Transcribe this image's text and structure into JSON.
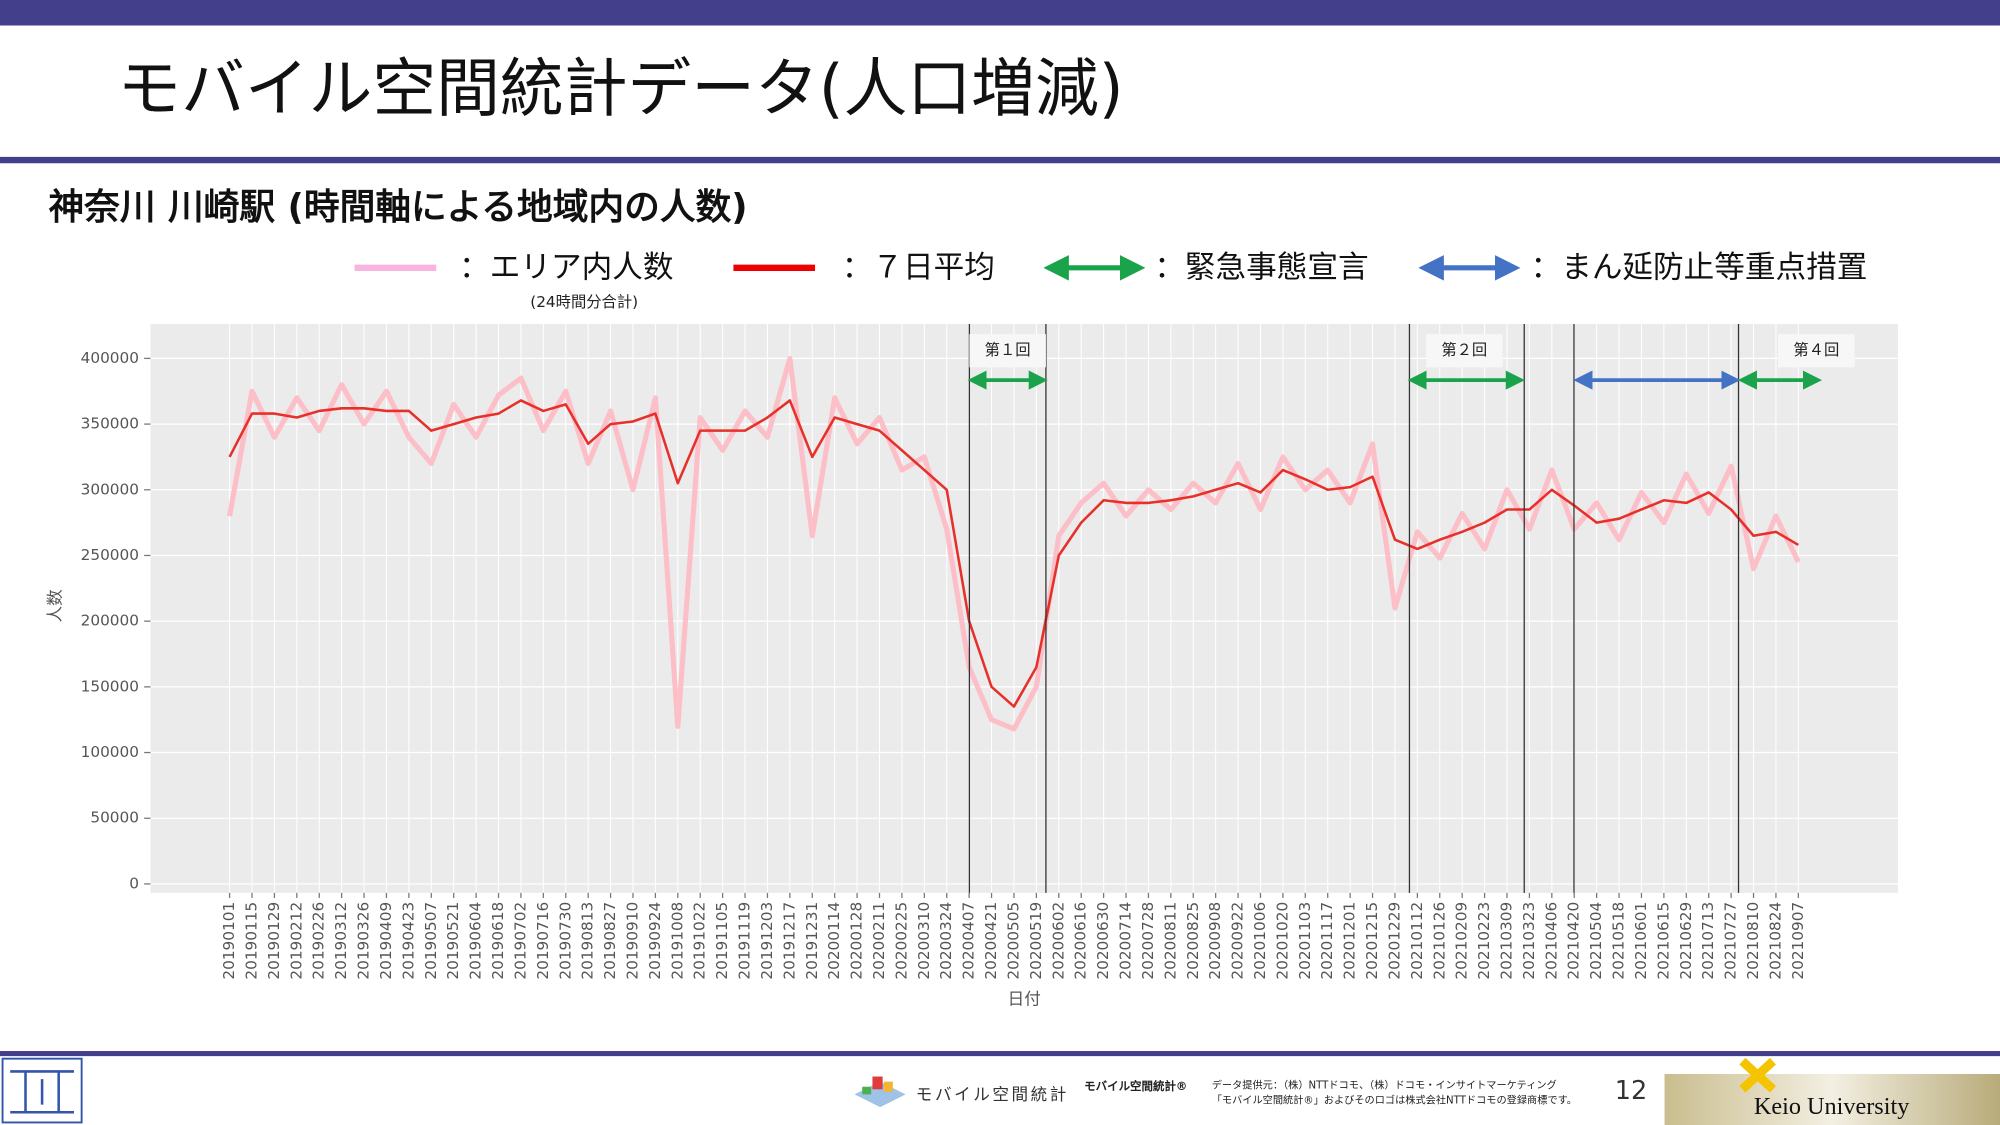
{
  "slide": {
    "title": "モバイル空間統計データ(人口増減)",
    "page_number": "12",
    "footer": {
      "logo_text": "モバイル空間統計",
      "brand": "モバイル空間統計®",
      "provider": "データ提供元：（株）NTTドコモ、（株）ドコモ・インサイトマーケティング",
      "trademark": "「モバイル空間統計®」およびそのロゴは株式会社NTTドコモの登録商標です。",
      "university": "Keio University"
    }
  },
  "chart_data": {
    "type": "line",
    "title": "神奈川 川崎駅 (時間軸による地域内の人数)",
    "y_label": "人数",
    "x_label": "日付",
    "legend_note": "(24時間分合計)",
    "legend_extra": [
      {
        "name": "：緊急事態宣言",
        "color": "#1aa34a"
      },
      {
        "name": "：まん延防止等重点措置",
        "color": "#4472c4"
      }
    ],
    "annotations": [
      "第１回",
      "第２回",
      "第４回"
    ],
    "grid": true,
    "categories": [
      "20190101",
      "20190115",
      "20190129",
      "20190212",
      "20190226",
      "20190312",
      "20190326",
      "20190409",
      "20190423",
      "20190507",
      "20190521",
      "20190604",
      "20190618",
      "20190702",
      "20190716",
      "20190730",
      "20190813",
      "20190827",
      "20190910",
      "20190924",
      "20191008",
      "20191022",
      "20191105",
      "20191119",
      "20191203",
      "20191217",
      "20191231",
      "20200114",
      "20200128",
      "20200211",
      "20200225",
      "20200310",
      "20200324",
      "20200407",
      "20200421",
      "20200505",
      "20200519",
      "20200602",
      "20200616",
      "20200630",
      "20200714",
      "20200728",
      "20200811",
      "20200825",
      "20200908",
      "20200922",
      "20201006",
      "20201020",
      "20201103",
      "20201117",
      "20201201",
      "20201215",
      "20201229",
      "20210112",
      "20210126",
      "20210209",
      "20210223",
      "20210309",
      "20210323",
      "20210406",
      "20210420",
      "20210504",
      "20210518",
      "20210601",
      "20210615",
      "20210629",
      "20210713",
      "20210727",
      "20210810",
      "20210824",
      "20210907"
    ],
    "series": [
      {
        "name": "：エリア内人数",
        "color": "#ffb6c1",
        "values": [
          280000,
          375000,
          340000,
          370000,
          345000,
          380000,
          350000,
          375000,
          340000,
          320000,
          365000,
          340000,
          372000,
          385000,
          345000,
          375000,
          320000,
          360000,
          300000,
          370000,
          120000,
          355000,
          330000,
          360000,
          340000,
          400000,
          265000,
          370000,
          335000,
          355000,
          315000,
          325000,
          270000,
          165000,
          125000,
          118000,
          150000,
          265000,
          290000,
          305000,
          280000,
          300000,
          285000,
          305000,
          290000,
          320000,
          285000,
          325000,
          300000,
          315000,
          290000,
          335000,
          210000,
          268000,
          248000,
          282000,
          255000,
          300000,
          270000,
          315000,
          270000,
          290000,
          262000,
          298000,
          275000,
          312000,
          282000,
          318000,
          240000,
          280000,
          245000
        ]
      },
      {
        "name": "：７日平均",
        "color": "#e8302a",
        "values": [
          325000,
          358000,
          358000,
          355000,
          360000,
          362000,
          362000,
          360000,
          360000,
          345000,
          350000,
          355000,
          358000,
          368000,
          360000,
          365000,
          335000,
          350000,
          352000,
          358000,
          305000,
          345000,
          345000,
          345000,
          355000,
          368000,
          325000,
          355000,
          350000,
          345000,
          330000,
          315000,
          300000,
          200000,
          150000,
          135000,
          165000,
          250000,
          275000,
          292000,
          290000,
          290000,
          292000,
          295000,
          300000,
          305000,
          298000,
          315000,
          308000,
          300000,
          302000,
          310000,
          262000,
          255000,
          262000,
          268000,
          275000,
          285000,
          285000,
          300000,
          288000,
          275000,
          278000,
          285000,
          292000,
          290000,
          298000,
          285000,
          265000,
          268000,
          258000
        ]
      }
    ],
    "ylim": [
      -6800,
      426200
    ],
    "yticks": [
      0,
      50000,
      100000,
      150000,
      200000,
      250000,
      300000,
      350000,
      400000
    ]
  }
}
